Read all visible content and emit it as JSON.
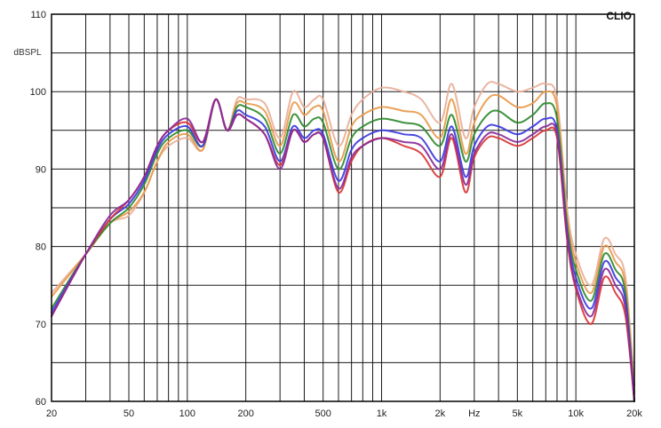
{
  "chart_data": {
    "type": "line",
    "brand": "CLIO",
    "y_unit": "dBSPL",
    "x_scale": "log",
    "xlim": [
      20,
      20000
    ],
    "ylim": [
      60,
      110
    ],
    "x_ticks": [
      {
        "value": 20,
        "label": "20"
      },
      {
        "value": 50,
        "label": "50"
      },
      {
        "value": 100,
        "label": "100"
      },
      {
        "value": 200,
        "label": "200"
      },
      {
        "value": 500,
        "label": "500"
      },
      {
        "value": 1000,
        "label": "1k"
      },
      {
        "value": 2000,
        "label": "2k"
      },
      {
        "value": 3000,
        "label": "Hz"
      },
      {
        "value": 5000,
        "label": "5k"
      },
      {
        "value": 10000,
        "label": "10k"
      },
      {
        "value": 20000,
        "label": "20k"
      }
    ],
    "y_ticks": [
      {
        "value": 60,
        "label": "60"
      },
      {
        "value": 70,
        "label": "70"
      },
      {
        "value": 80,
        "label": "80"
      },
      {
        "value": 90,
        "label": "90"
      },
      {
        "value": 100,
        "label": "100"
      },
      {
        "value": 110,
        "label": "110"
      }
    ],
    "grid": true,
    "colors": {
      "grid": "#1a1a1a",
      "background": "#ffffff"
    },
    "series": [
      {
        "color": "#e8b09a",
        "values": [
          [
            20,
            74
          ],
          [
            30,
            79
          ],
          [
            40,
            83
          ],
          [
            50,
            84
          ],
          [
            60,
            87
          ],
          [
            70,
            91
          ],
          [
            80,
            93
          ],
          [
            100,
            94
          ],
          [
            120,
            92.5
          ],
          [
            140,
            99
          ],
          [
            160,
            95
          ],
          [
            180,
            99
          ],
          [
            200,
            99
          ],
          [
            250,
            98.5
          ],
          [
            300,
            94
          ],
          [
            350,
            100
          ],
          [
            400,
            98
          ],
          [
            450,
            99
          ],
          [
            500,
            99
          ],
          [
            600,
            93
          ],
          [
            700,
            97
          ],
          [
            800,
            99
          ],
          [
            1000,
            100.5
          ],
          [
            1300,
            100
          ],
          [
            1600,
            99
          ],
          [
            2000,
            96
          ],
          [
            2300,
            101
          ],
          [
            2700,
            94
          ],
          [
            3000,
            98
          ],
          [
            3500,
            101
          ],
          [
            4000,
            101
          ],
          [
            5000,
            100
          ],
          [
            6000,
            100.5
          ],
          [
            7000,
            101
          ],
          [
            8000,
            99
          ],
          [
            9000,
            85
          ],
          [
            10000,
            79
          ],
          [
            12000,
            75
          ],
          [
            14000,
            81
          ],
          [
            16000,
            79
          ],
          [
            18000,
            76
          ],
          [
            20000,
            62
          ]
        ]
      },
      {
        "color": "#e89a4a",
        "values": [
          [
            20,
            73.5
          ],
          [
            30,
            79
          ],
          [
            40,
            83
          ],
          [
            50,
            84.5
          ],
          [
            60,
            87
          ],
          [
            70,
            91
          ],
          [
            80,
            93.5
          ],
          [
            100,
            94.5
          ],
          [
            120,
            92.5
          ],
          [
            140,
            99
          ],
          [
            160,
            95
          ],
          [
            180,
            98.5
          ],
          [
            200,
            98.5
          ],
          [
            250,
            97.5
          ],
          [
            300,
            93
          ],
          [
            350,
            98.5
          ],
          [
            400,
            97
          ],
          [
            450,
            98
          ],
          [
            500,
            97.5
          ],
          [
            600,
            91
          ],
          [
            700,
            95.5
          ],
          [
            800,
            97
          ],
          [
            1000,
            98
          ],
          [
            1300,
            97.5
          ],
          [
            1600,
            97
          ],
          [
            2000,
            94
          ],
          [
            2300,
            99
          ],
          [
            2700,
            92
          ],
          [
            3000,
            96
          ],
          [
            3500,
            99
          ],
          [
            4000,
            99.5
          ],
          [
            5000,
            98
          ],
          [
            6000,
            98.5
          ],
          [
            7000,
            100
          ],
          [
            8000,
            98
          ],
          [
            9000,
            84
          ],
          [
            10000,
            78
          ],
          [
            12000,
            74
          ],
          [
            14000,
            80
          ],
          [
            16000,
            78
          ],
          [
            18000,
            75
          ],
          [
            20000,
            61
          ]
        ]
      },
      {
        "color": "#2e8a2e",
        "values": [
          [
            20,
            72
          ],
          [
            30,
            79
          ],
          [
            40,
            83
          ],
          [
            50,
            85
          ],
          [
            60,
            88
          ],
          [
            70,
            92
          ],
          [
            80,
            94
          ],
          [
            100,
            95
          ],
          [
            120,
            93
          ],
          [
            140,
            99
          ],
          [
            160,
            95
          ],
          [
            180,
            98
          ],
          [
            200,
            98
          ],
          [
            250,
            96.5
          ],
          [
            300,
            92
          ],
          [
            350,
            97
          ],
          [
            400,
            95.5
          ],
          [
            450,
            96.5
          ],
          [
            500,
            96
          ],
          [
            600,
            90
          ],
          [
            700,
            94
          ],
          [
            800,
            95.5
          ],
          [
            1000,
            96.5
          ],
          [
            1300,
            96
          ],
          [
            1600,
            95.5
          ],
          [
            2000,
            93
          ],
          [
            2300,
            97
          ],
          [
            2700,
            91
          ],
          [
            3000,
            94.5
          ],
          [
            3500,
            97
          ],
          [
            4000,
            97.5
          ],
          [
            5000,
            96
          ],
          [
            6000,
            97
          ],
          [
            7000,
            98.5
          ],
          [
            8000,
            96.5
          ],
          [
            9000,
            83
          ],
          [
            10000,
            77
          ],
          [
            12000,
            73
          ],
          [
            14000,
            79
          ],
          [
            16000,
            77
          ],
          [
            18000,
            74
          ],
          [
            20000,
            60
          ]
        ]
      },
      {
        "color": "#3a3ae0",
        "values": [
          [
            20,
            71.5
          ],
          [
            30,
            79
          ],
          [
            40,
            83.5
          ],
          [
            50,
            85.5
          ],
          [
            60,
            88.5
          ],
          [
            70,
            92.5
          ],
          [
            80,
            94.5
          ],
          [
            100,
            95.5
          ],
          [
            120,
            93
          ],
          [
            140,
            99
          ],
          [
            160,
            95
          ],
          [
            180,
            97.5
          ],
          [
            200,
            97
          ],
          [
            250,
            95.5
          ],
          [
            300,
            91
          ],
          [
            350,
            95.5
          ],
          [
            400,
            94
          ],
          [
            450,
            95
          ],
          [
            500,
            94.5
          ],
          [
            600,
            88.5
          ],
          [
            700,
            92.5
          ],
          [
            800,
            94
          ],
          [
            1000,
            95
          ],
          [
            1300,
            94.5
          ],
          [
            1600,
            94
          ],
          [
            2000,
            91
          ],
          [
            2300,
            95.5
          ],
          [
            2700,
            89
          ],
          [
            3000,
            93
          ],
          [
            3500,
            95.5
          ],
          [
            4000,
            95.5
          ],
          [
            5000,
            94.5
          ],
          [
            6000,
            95.5
          ],
          [
            7000,
            96.5
          ],
          [
            8000,
            95
          ],
          [
            9000,
            82
          ],
          [
            10000,
            76
          ],
          [
            12000,
            72
          ],
          [
            14000,
            78
          ],
          [
            16000,
            76
          ],
          [
            18000,
            73
          ],
          [
            20000,
            60
          ]
        ]
      },
      {
        "color": "#d93535",
        "values": [
          [
            20,
            71
          ],
          [
            30,
            79
          ],
          [
            40,
            83.5
          ],
          [
            50,
            86
          ],
          [
            60,
            89
          ],
          [
            70,
            93
          ],
          [
            80,
            95
          ],
          [
            100,
            96
          ],
          [
            120,
            93.5
          ],
          [
            140,
            99
          ],
          [
            160,
            95
          ],
          [
            180,
            97
          ],
          [
            200,
            96.5
          ],
          [
            250,
            94.5
          ],
          [
            300,
            90.5
          ],
          [
            350,
            95
          ],
          [
            400,
            93.5
          ],
          [
            450,
            94.5
          ],
          [
            500,
            94
          ],
          [
            600,
            87
          ],
          [
            700,
            91
          ],
          [
            800,
            93
          ],
          [
            1000,
            94
          ],
          [
            1300,
            93
          ],
          [
            1600,
            92
          ],
          [
            2000,
            89
          ],
          [
            2300,
            94
          ],
          [
            2700,
            87
          ],
          [
            3000,
            91.5
          ],
          [
            3500,
            94
          ],
          [
            4000,
            94
          ],
          [
            5000,
            93
          ],
          [
            6000,
            94
          ],
          [
            7000,
            95
          ],
          [
            8000,
            94
          ],
          [
            9000,
            81
          ],
          [
            10000,
            74.5
          ],
          [
            12000,
            70
          ],
          [
            14000,
            76
          ],
          [
            16000,
            74
          ],
          [
            18000,
            71
          ],
          [
            20000,
            60
          ]
        ]
      },
      {
        "color": "#8a2a9a",
        "values": [
          [
            20,
            71
          ],
          [
            30,
            79
          ],
          [
            40,
            84
          ],
          [
            50,
            86
          ],
          [
            60,
            89
          ],
          [
            70,
            93
          ],
          [
            80,
            95
          ],
          [
            100,
            96.5
          ],
          [
            120,
            93.5
          ],
          [
            140,
            99
          ],
          [
            160,
            95
          ],
          [
            180,
            97
          ],
          [
            200,
            96.5
          ],
          [
            250,
            94.5
          ],
          [
            300,
            90
          ],
          [
            350,
            95
          ],
          [
            400,
            93.5
          ],
          [
            450,
            94.5
          ],
          [
            500,
            94
          ],
          [
            600,
            87.5
          ],
          [
            700,
            91.5
          ],
          [
            800,
            93
          ],
          [
            1000,
            94
          ],
          [
            1300,
            93.5
          ],
          [
            1600,
            93
          ],
          [
            2000,
            90
          ],
          [
            2300,
            94.5
          ],
          [
            2700,
            88
          ],
          [
            3000,
            92
          ],
          [
            3500,
            94.5
          ],
          [
            4000,
            94.5
          ],
          [
            5000,
            93.5
          ],
          [
            6000,
            94.5
          ],
          [
            7000,
            95.5
          ],
          [
            8000,
            94.5
          ],
          [
            9000,
            81.5
          ],
          [
            10000,
            75
          ],
          [
            12000,
            71
          ],
          [
            14000,
            77
          ],
          [
            16000,
            75
          ],
          [
            18000,
            72
          ],
          [
            20000,
            60
          ]
        ]
      }
    ]
  }
}
